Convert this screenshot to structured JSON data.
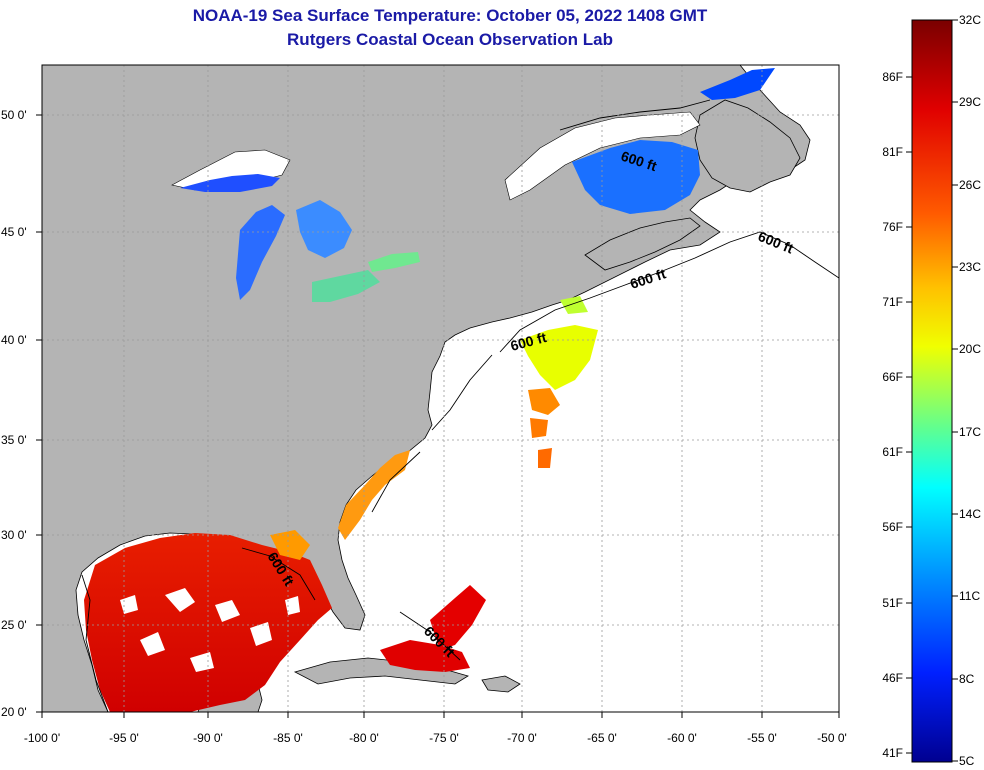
{
  "title_line1": "NOAA-19 Sea Surface Temperature:  October 05, 2022 1408 GMT",
  "title_line2": "Rutgers Coastal Ocean Observation Lab",
  "map": {
    "lon_ticks": [
      "-100 0'",
      "-95 0'",
      "-90 0'",
      "-85 0'",
      "-80 0'",
      "-75 0'",
      "-70 0'",
      "-65 0'",
      "-60 0'",
      "-55 0'",
      "-50 0'"
    ],
    "lat_ticks": [
      "50 0'",
      "45 0'",
      "40 0'",
      "35 0'",
      "30 0'",
      "25 0'",
      "20 0'"
    ],
    "contour_labels": [
      "600 ft",
      "600 ft",
      "600 ft",
      "600 ft",
      "600 ft",
      "600 ft"
    ],
    "colors": {
      "land": "#b4b4b4",
      "ocean_nodata": "#ffffff",
      "grid": "#9a9a9a"
    }
  },
  "colorbar": {
    "celsius_labels": [
      "32C",
      "29C",
      "26C",
      "23C",
      "20C",
      "17C",
      "14C",
      "11C",
      "8C",
      "5C"
    ],
    "fahrenheit_labels": [
      "86F",
      "81F",
      "76F",
      "71F",
      "66F",
      "61F",
      "56F",
      "51F",
      "46F",
      "41F"
    ],
    "colors": [
      "#800000",
      "#e00000",
      "#ff5000",
      "#ffa000",
      "#ffff00",
      "#80ff80",
      "#00ffff",
      "#0090ff",
      "#0020ff",
      "#00008f"
    ]
  }
}
